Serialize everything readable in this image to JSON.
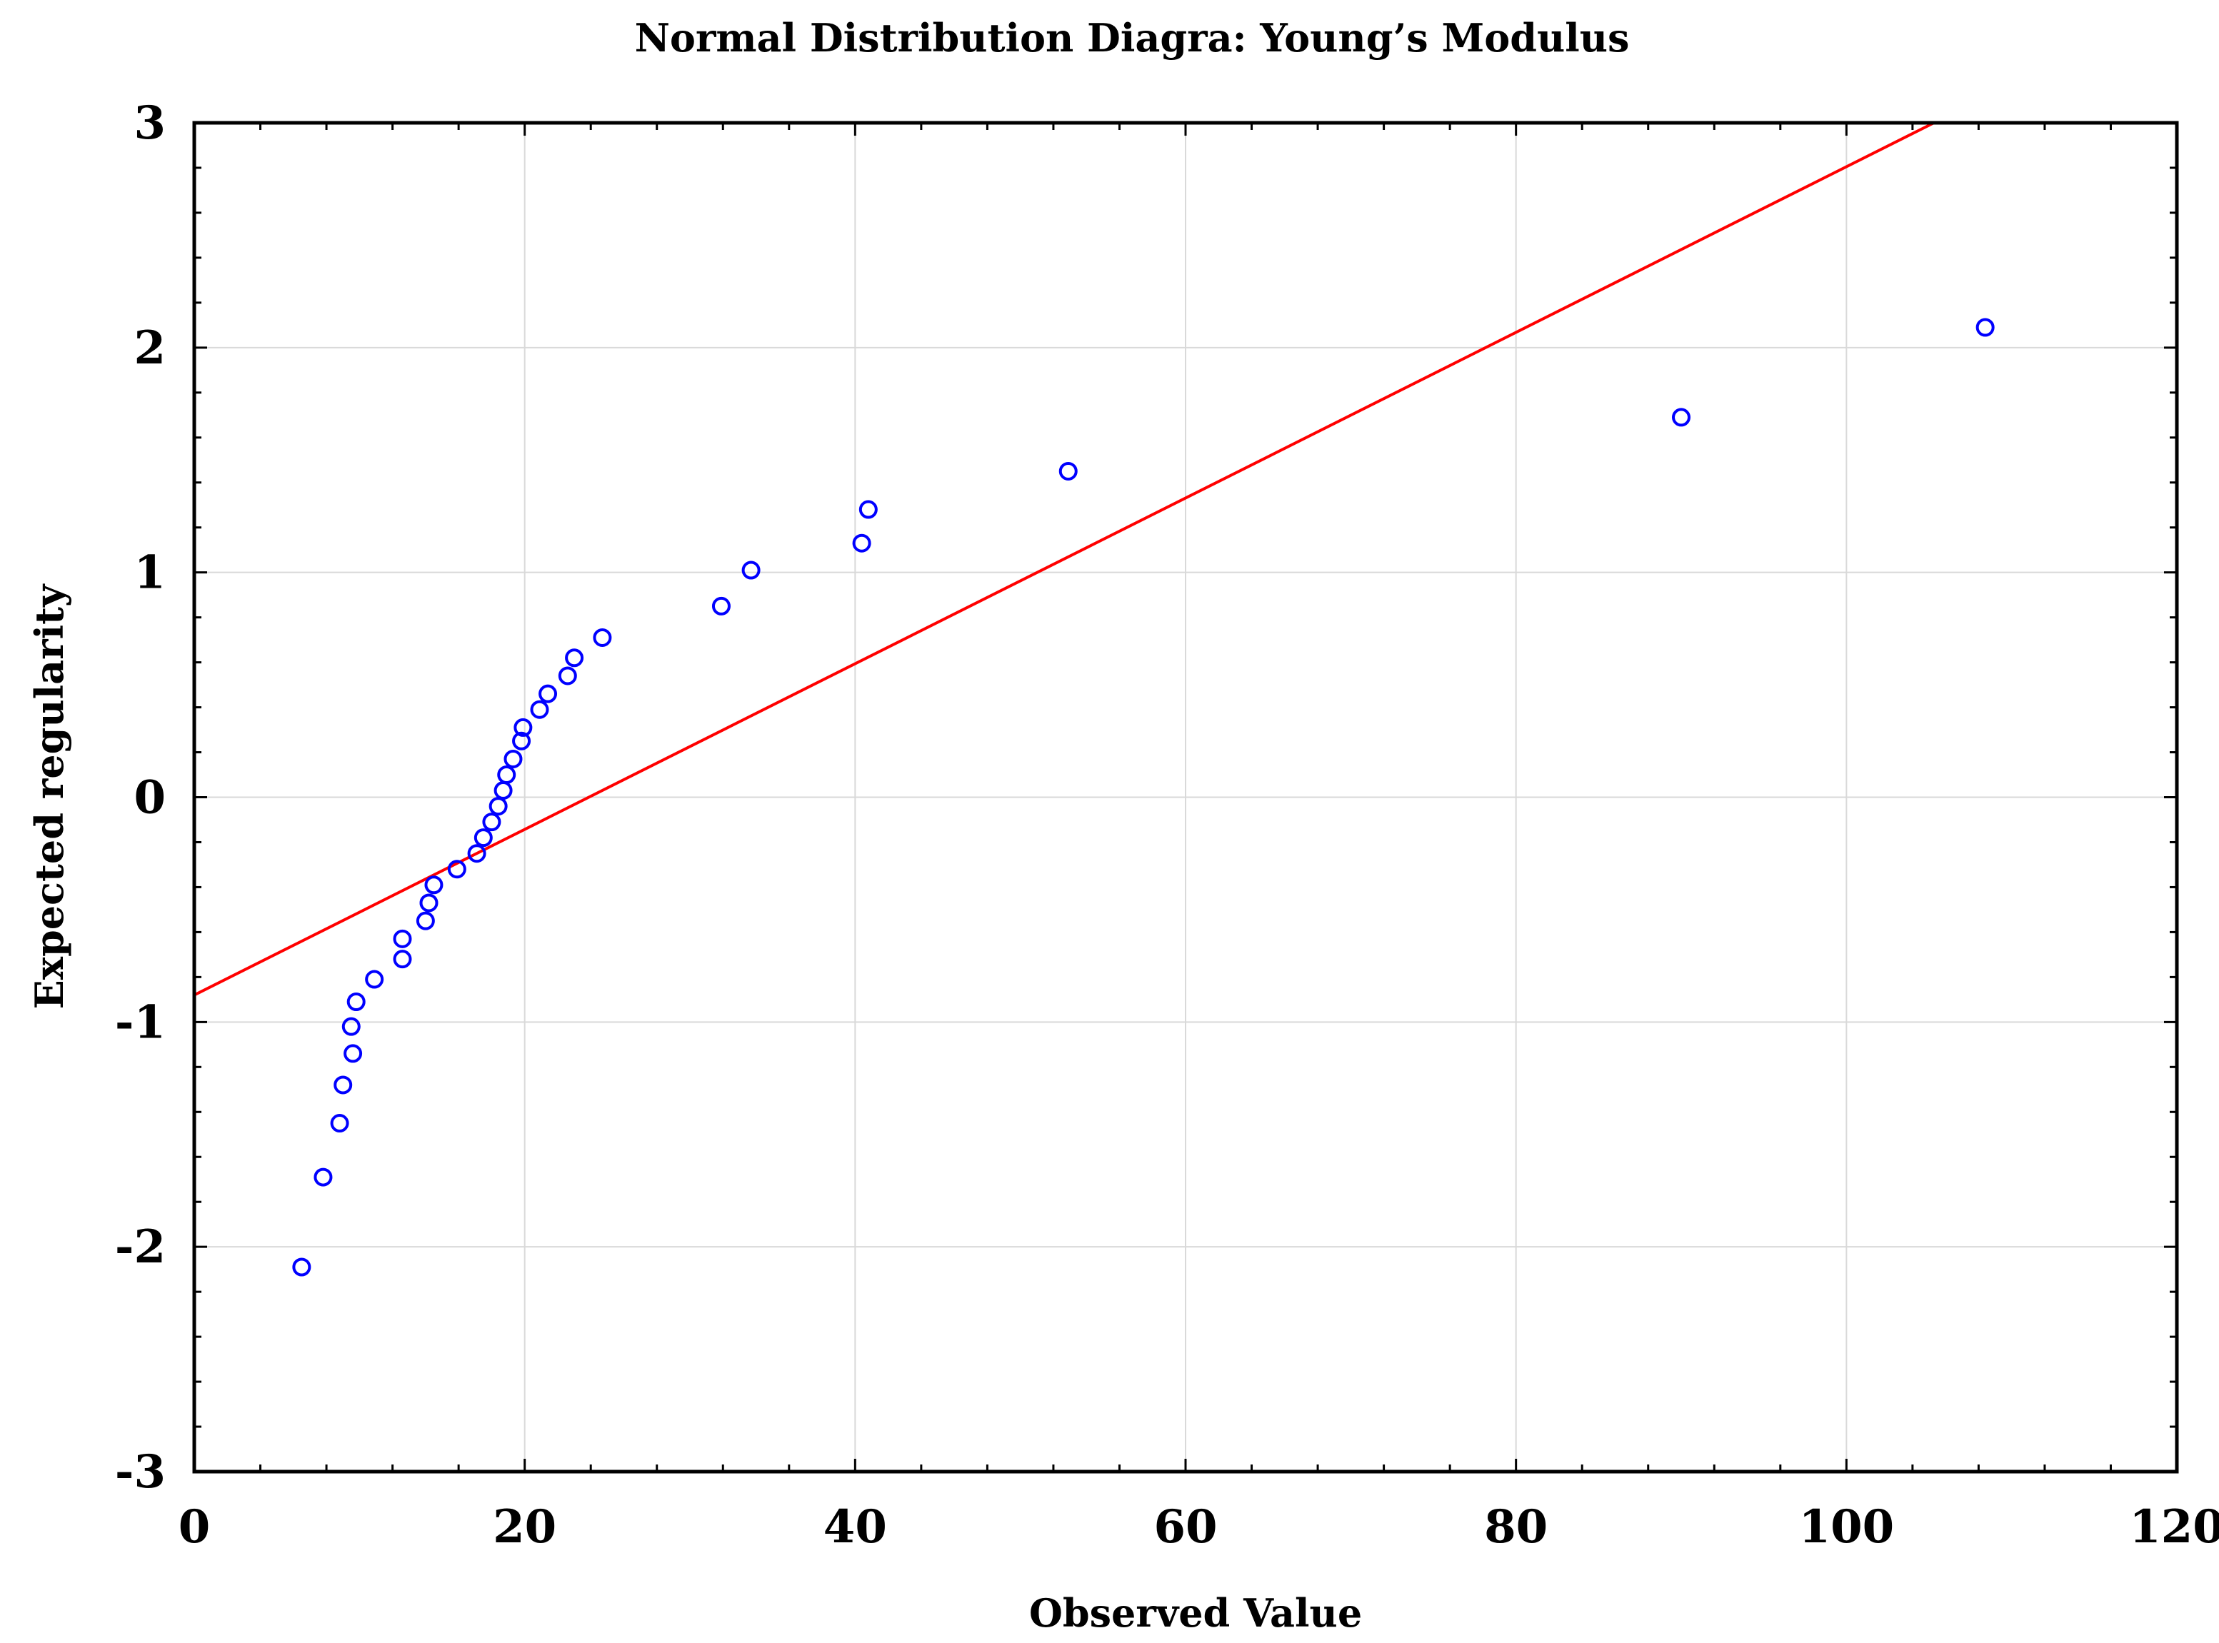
{
  "chart_data": {
    "type": "scatter",
    "title": "Normal Distribution Diagra: Young’s Modulus",
    "xlabel": "Observed Value",
    "ylabel": "Expected regularity",
    "xlim": [
      0,
      120
    ],
    "ylim": [
      -3,
      3
    ],
    "x_ticks": [
      0,
      20,
      40,
      60,
      80,
      100,
      120
    ],
    "y_ticks": [
      -3,
      -2,
      -1,
      0,
      1,
      2,
      3
    ],
    "x_tick_labels": [
      "0",
      "20",
      "40",
      "60",
      "80",
      "100",
      "120"
    ],
    "y_tick_labels": [
      "-3",
      "-2",
      "-1",
      "0",
      "1",
      "2",
      "3"
    ],
    "grid": true,
    "series": [
      {
        "marker": "open-circle",
        "color": "#0000ff",
        "points": [
          {
            "x": 6.5,
            "y": -2.09
          },
          {
            "x": 7.8,
            "y": -1.69
          },
          {
            "x": 8.8,
            "y": -1.45
          },
          {
            "x": 9.0,
            "y": -1.28
          },
          {
            "x": 9.6,
            "y": -1.14
          },
          {
            "x": 9.5,
            "y": -1.02
          },
          {
            "x": 9.8,
            "y": -0.91
          },
          {
            "x": 10.9,
            "y": -0.81
          },
          {
            "x": 12.6,
            "y": -0.72
          },
          {
            "x": 12.6,
            "y": -0.63
          },
          {
            "x": 14.0,
            "y": -0.55
          },
          {
            "x": 14.2,
            "y": -0.47
          },
          {
            "x": 14.5,
            "y": -0.39
          },
          {
            "x": 15.9,
            "y": -0.32
          },
          {
            "x": 17.1,
            "y": -0.25
          },
          {
            "x": 17.5,
            "y": -0.18
          },
          {
            "x": 18.0,
            "y": -0.11
          },
          {
            "x": 18.4,
            "y": -0.04
          },
          {
            "x": 18.7,
            "y": 0.03
          },
          {
            "x": 18.9,
            "y": 0.1
          },
          {
            "x": 19.3,
            "y": 0.17
          },
          {
            "x": 19.8,
            "y": 0.25
          },
          {
            "x": 19.9,
            "y": 0.31
          },
          {
            "x": 20.9,
            "y": 0.39
          },
          {
            "x": 21.4,
            "y": 0.46
          },
          {
            "x": 22.6,
            "y": 0.54
          },
          {
            "x": 23.0,
            "y": 0.62
          },
          {
            "x": 24.7,
            "y": 0.71
          },
          {
            "x": 31.9,
            "y": 0.85
          },
          {
            "x": 33.7,
            "y": 1.01
          },
          {
            "x": 40.4,
            "y": 1.13
          },
          {
            "x": 40.8,
            "y": 1.28
          },
          {
            "x": 52.9,
            "y": 1.45
          },
          {
            "x": 90.0,
            "y": 1.69
          },
          {
            "x": 108.4,
            "y": 2.09
          }
        ]
      }
    ],
    "fit_line": {
      "color": "#ff0000",
      "x0": 0,
      "y0": -0.88,
      "x1": 105.3,
      "y1": 3.0
    }
  }
}
